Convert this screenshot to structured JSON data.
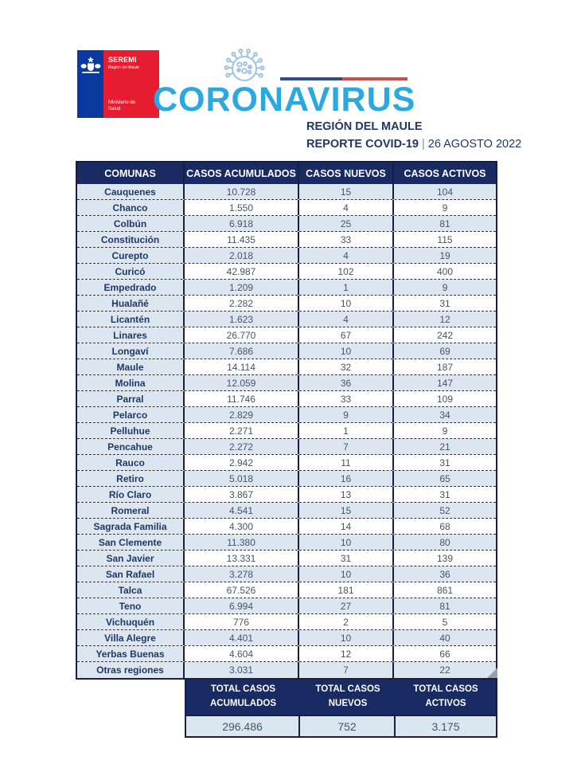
{
  "header": {
    "logo": {
      "seremi": "SEREMI",
      "region": "Región del Maule",
      "ministry_line1": "Ministerio de",
      "ministry_line2": "Salud"
    },
    "title": "CORONAVIRUS",
    "region_title": "REGIÓN DEL MAULE",
    "report_label": "REPORTE COVID-19",
    "separator": "|",
    "report_date": "26 AGOSTO 2022"
  },
  "table": {
    "columns": [
      "COMUNAS",
      "CASOS ACUMULADOS",
      "CASOS NUEVOS",
      "CASOS ACTIVOS"
    ],
    "rows": [
      [
        "Cauquenes",
        "10.728",
        "15",
        "104"
      ],
      [
        "Chanco",
        "1.550",
        "4",
        "9"
      ],
      [
        "Colbún",
        "6.918",
        "25",
        "81"
      ],
      [
        "Constitución",
        "11.435",
        "33",
        "115"
      ],
      [
        "Curepto",
        "2.018",
        "4",
        "19"
      ],
      [
        "Curicó",
        "42.987",
        "102",
        "400"
      ],
      [
        "Empedrado",
        "1.209",
        "1",
        "9"
      ],
      [
        "Hualañé",
        "2.282",
        "10",
        "31"
      ],
      [
        "Licantén",
        "1.623",
        "4",
        "12"
      ],
      [
        "Linares",
        "26.770",
        "67",
        "242"
      ],
      [
        "Longaví",
        "7.686",
        "10",
        "69"
      ],
      [
        "Maule",
        "14.114",
        "32",
        "187"
      ],
      [
        "Molina",
        "12.059",
        "36",
        "147"
      ],
      [
        "Parral",
        "11.746",
        "33",
        "109"
      ],
      [
        "Pelarco",
        "2.829",
        "9",
        "34"
      ],
      [
        "Pelluhue",
        "2.271",
        "1",
        "9"
      ],
      [
        "Pencahue",
        "2.272",
        "7",
        "21"
      ],
      [
        "Rauco",
        "2.942",
        "11",
        "31"
      ],
      [
        "Retiro",
        "5.018",
        "16",
        "65"
      ],
      [
        "Río Claro",
        "3.867",
        "13",
        "31"
      ],
      [
        "Romeral",
        "4.541",
        "15",
        "52"
      ],
      [
        "Sagrada Familia",
        "4.300",
        "14",
        "68"
      ],
      [
        "San Clemente",
        "11.380",
        "10",
        "80"
      ],
      [
        "San Javier",
        "13.331",
        "31",
        "139"
      ],
      [
        "San Rafael",
        "3.278",
        "10",
        "36"
      ],
      [
        "Talca",
        "67.526",
        "181",
        "861"
      ],
      [
        "Teno",
        "6.994",
        "27",
        "81"
      ],
      [
        "Vichuquén",
        "776",
        "2",
        "5"
      ],
      [
        "Villa Alegre",
        "4.401",
        "10",
        "40"
      ],
      [
        "Yerbas Buenas",
        "4.604",
        "12",
        "66"
      ],
      [
        "Otras regiones",
        "3.031",
        "7",
        "22"
      ]
    ],
    "totals": {
      "labels": [
        [
          "TOTAL CASOS",
          "ACUMULADOS"
        ],
        [
          "TOTAL CASOS",
          "NUEVOS"
        ],
        [
          "TOTAL CASOS",
          "ACTIVOS"
        ]
      ],
      "values": [
        "296.486",
        "752",
        "3.175"
      ]
    }
  },
  "colors": {
    "header_navy": "#1a2a62",
    "row_blue": "#dce6f1",
    "text_navy": "#1f3864",
    "number_gray": "#44546a",
    "title_blue": "#2aa9e0",
    "logo_blue": "#0a3aa0",
    "logo_red": "#e81c30",
    "line_blue": "#2e4d8e",
    "line_red": "#c9504e"
  }
}
